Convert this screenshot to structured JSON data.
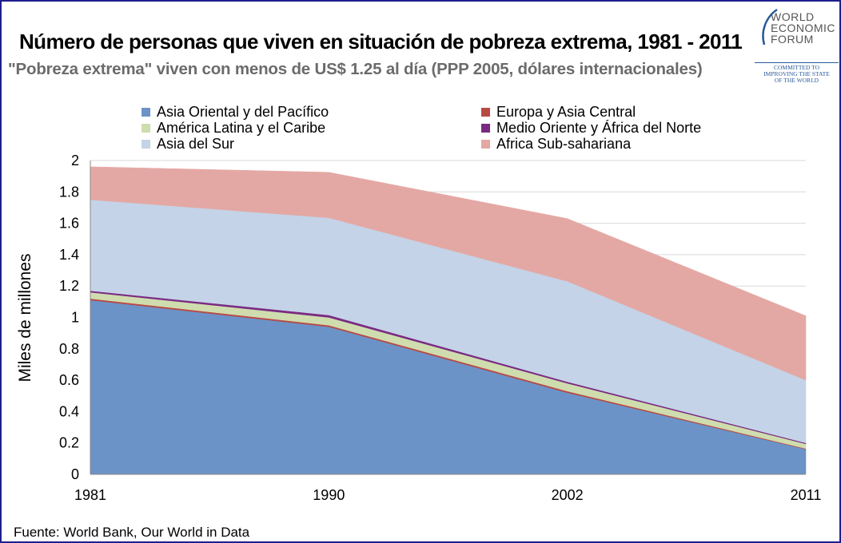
{
  "header": {
    "title": "Número de personas que viven en situación de pobreza extrema, 1981 - 2011",
    "subtitle": "\"Pobreza extrema\" viven con menos de US$ 1.25 al día (PPP 2005, dólares internacionales)"
  },
  "logo": {
    "name_lines": [
      "WORLD",
      "ECONOMIC",
      "FORUM"
    ],
    "tagline_lines": [
      "COMMITTED TO",
      "IMPROVING THE STATE",
      "OF THE WORLD"
    ]
  },
  "footer": {
    "source": "Fuente:  World Bank, Our World in Data"
  },
  "chart_data": {
    "type": "area",
    "stacked": true,
    "ylabel": "Miles de millones",
    "xlabel": "",
    "x": [
      "1981",
      "1990",
      "2002",
      "2011"
    ],
    "ylim": [
      0,
      2
    ],
    "yticks": [
      "0",
      "0.2",
      "0.4",
      "0.6",
      "0.8",
      "1",
      "1.2",
      "1.4",
      "1.6",
      "1.8",
      "2"
    ],
    "grid": true,
    "legend_position": "top",
    "series": [
      {
        "name": "Asia Oriental y del Pacífico",
        "color": "#6b93c8",
        "values": [
          1.11,
          0.94,
          0.52,
          0.16
        ]
      },
      {
        "name": "Europa y Asia Central",
        "color": "#b84a45",
        "values": [
          0.01,
          0.01,
          0.01,
          0.004
        ]
      },
      {
        "name": "América Latina y el Caribe",
        "color": "#cfdcae",
        "values": [
          0.04,
          0.05,
          0.05,
          0.03
        ]
      },
      {
        "name": "Medio Oriente y África del Norte",
        "color": "#7a2a82",
        "values": [
          0.01,
          0.015,
          0.01,
          0.006
        ]
      },
      {
        "name": "Asia del Sur",
        "color": "#c4d3e7",
        "values": [
          0.58,
          0.62,
          0.64,
          0.4
        ]
      },
      {
        "name": "Africa Sub-sahariana",
        "color": "#e4a8a4",
        "values": [
          0.21,
          0.29,
          0.4,
          0.41
        ]
      }
    ],
    "legend_order": [
      0,
      1,
      2,
      3,
      4,
      5
    ]
  }
}
